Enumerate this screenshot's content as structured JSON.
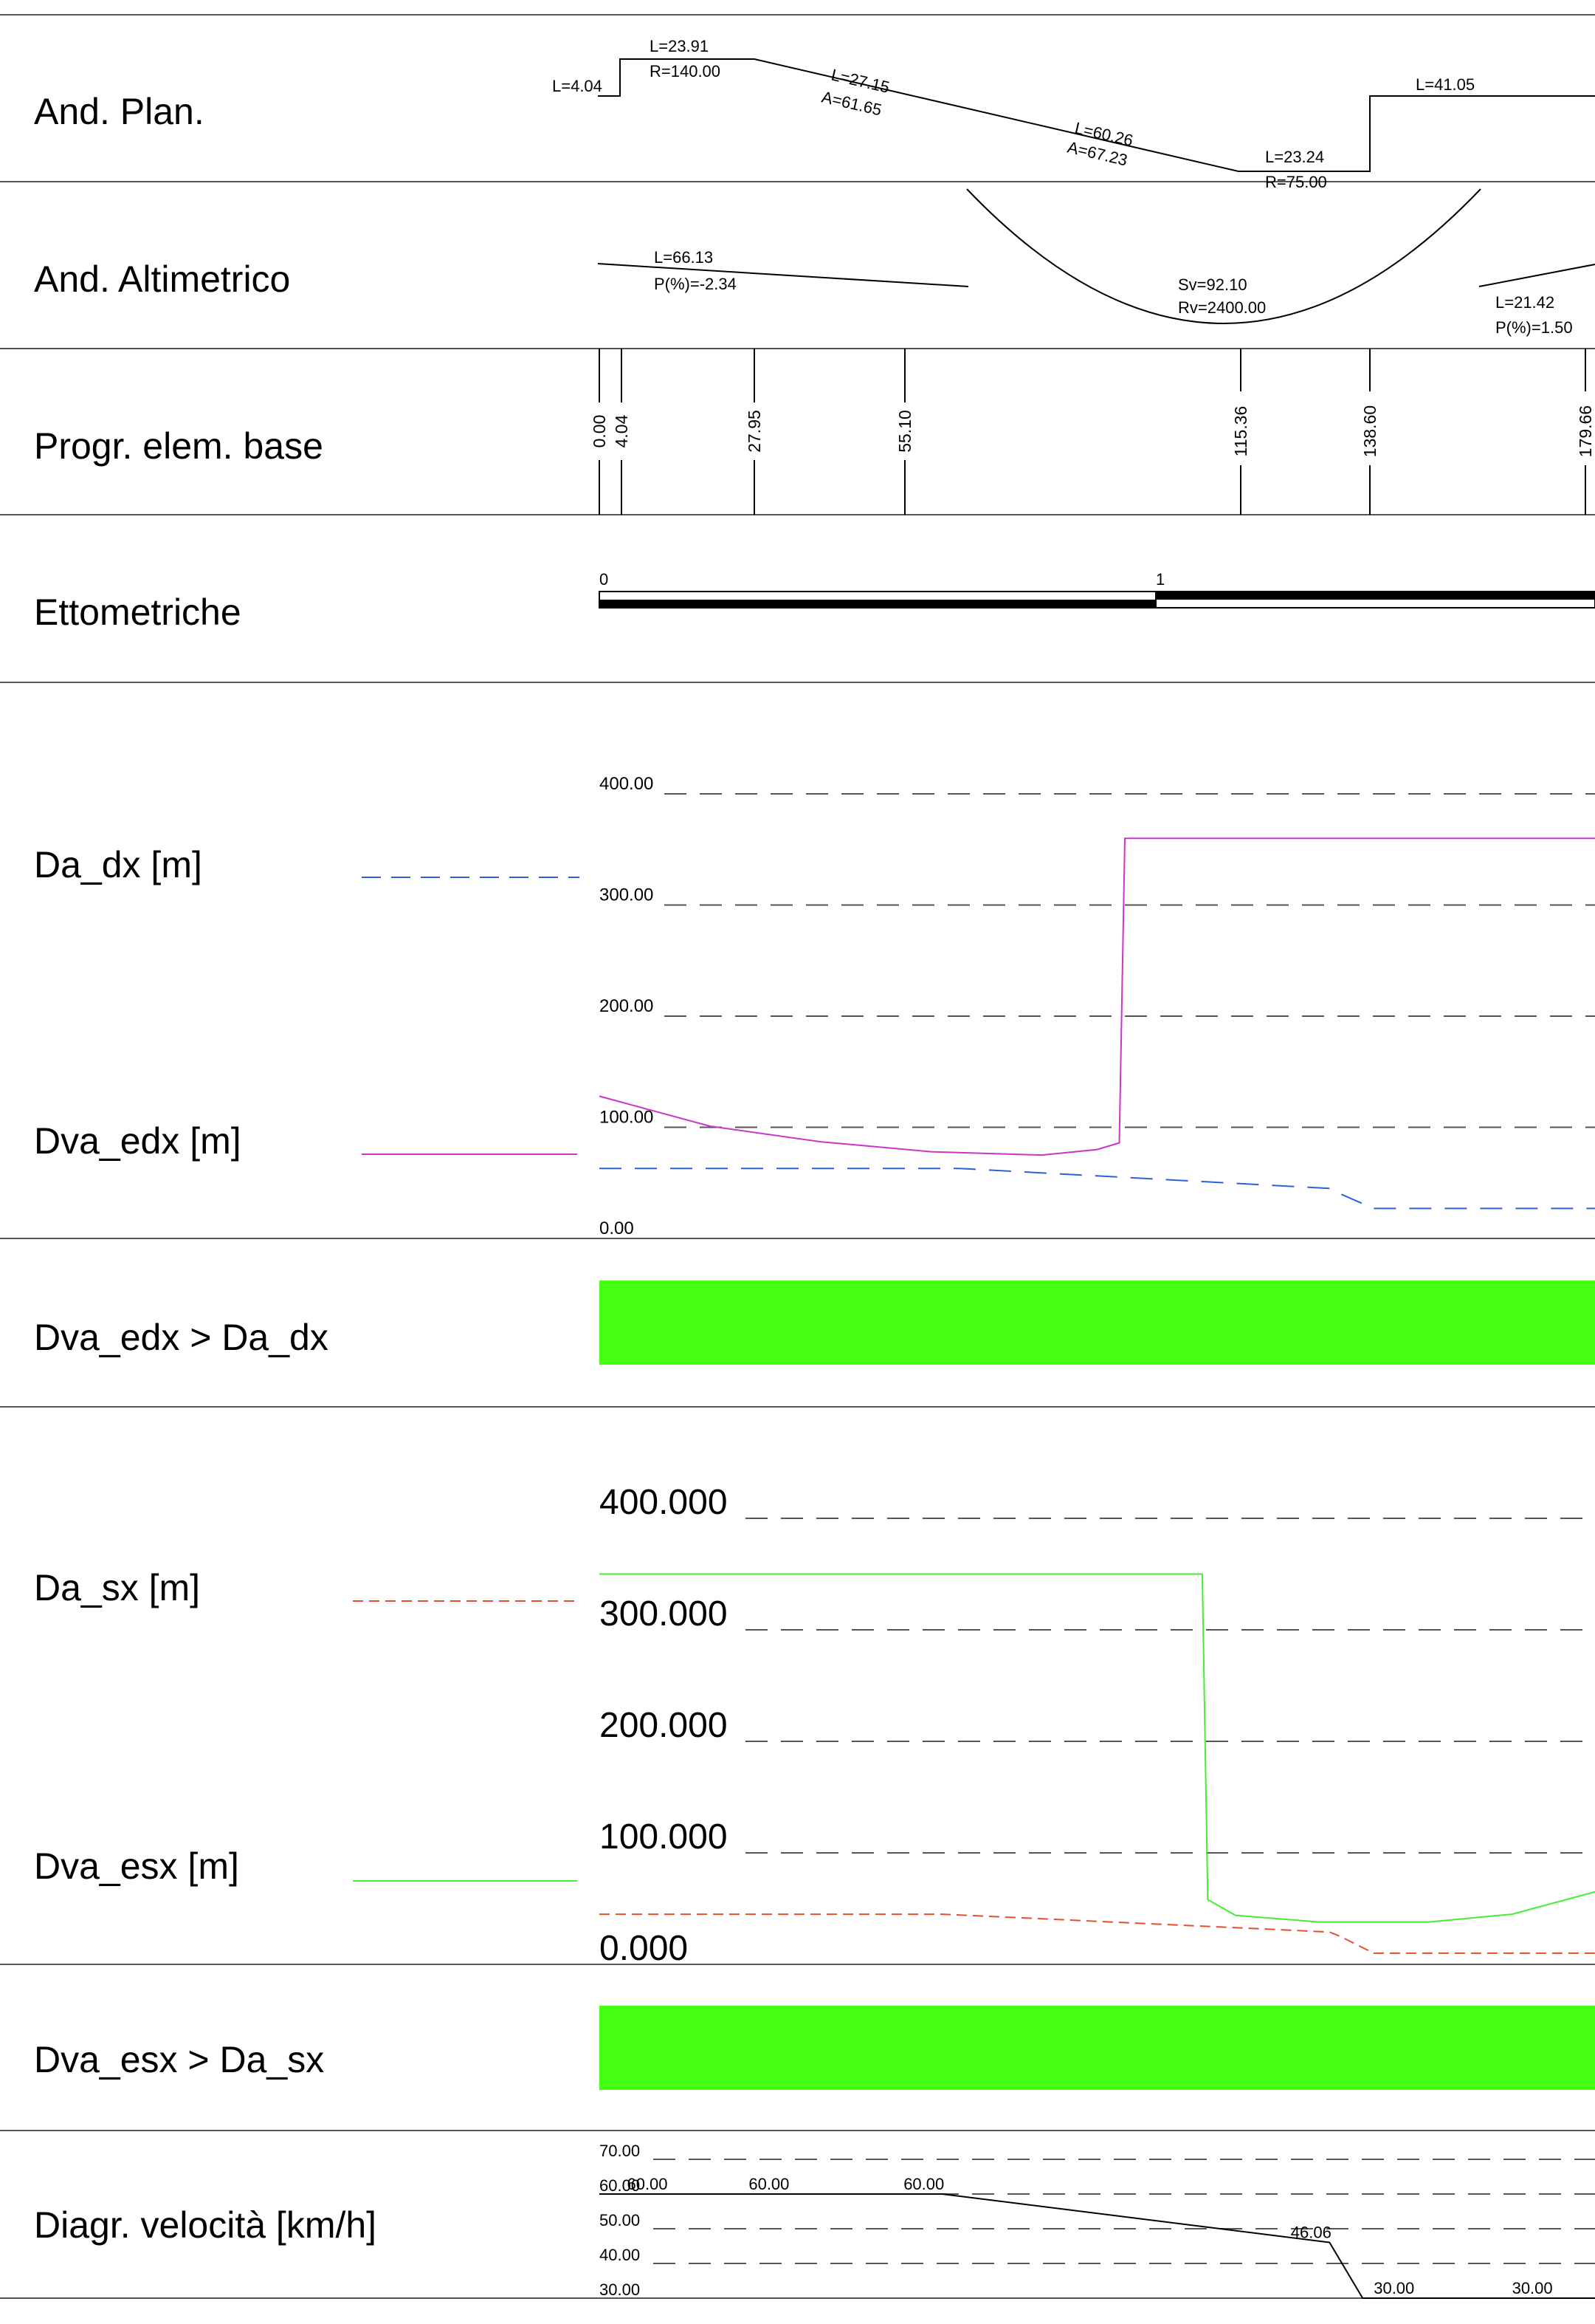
{
  "rows": {
    "and_plan": "And. Plan.",
    "and_alt": "And. Altimetrico",
    "progr": "Progr. elem. base",
    "ettometriche": "Ettometriche",
    "da_dx": "Da_dx [m]",
    "dva_edx": "Dva_edx [m]",
    "check_dx": "Dva_edx > Da_dx",
    "da_sx": "Da_sx [m]",
    "dva_esx": "Dva_esx [m]",
    "check_sx": "Dva_esx > Da_sx",
    "velocita": "Diagr. velocità [km/h]"
  },
  "plan_labels": {
    "l1": "L=4.04",
    "l2": "L=23.91",
    "r2": "R=140.00",
    "l3": "L=27.15",
    "a3": "A=61.65",
    "l4": "L=60.26",
    "a4": "A=67.23",
    "l5": "L=23.24",
    "r5": "R=75.00",
    "l6": "L=41.05"
  },
  "alt_labels": {
    "l1": "L=66.13",
    "p1": "P(%)=-2.34",
    "sv": "Sv=92.10",
    "rv": "Rv=2400.00",
    "l2": "L=21.42",
    "p2": "P(%)=1.50"
  },
  "progressives": [
    "0.00",
    "4.04",
    "27.95",
    "55.10",
    "115.36",
    "138.60",
    "179.66"
  ],
  "ettometriche": {
    "start": "0",
    "one": "1"
  },
  "colors": {
    "da_dx": "#2e5fd9",
    "dva_edx": "#cc33cc",
    "da_sx": "#e0502a",
    "dva_esx": "#44ee33",
    "ok_bar": "#44ff11"
  },
  "chart_data": [
    {
      "type": "line",
      "title": "",
      "xlabel": "",
      "ylabel": "",
      "ylim": [
        0,
        400
      ],
      "y_ticks": [
        "400.00",
        "300.00",
        "200.00",
        "100.00",
        "0.00"
      ],
      "grid": true,
      "series": [
        {
          "name": "Da_dx [m]",
          "x": [
            0,
            65,
            132,
            134,
            140,
            180
          ],
          "values": [
            63,
            63,
            45,
            40,
            27,
            27
          ]
        },
        {
          "name": "Dva_edx [m]",
          "x": [
            0,
            20,
            40,
            60,
            80,
            90,
            94,
            95,
            180
          ],
          "values": [
            128,
            101,
            87,
            78,
            75,
            80,
            86,
            360,
            360
          ]
        }
      ]
    },
    {
      "type": "line",
      "title": "",
      "xlabel": "",
      "ylabel": "",
      "ylim": [
        0,
        400
      ],
      "y_ticks": [
        "400.000",
        "300.000",
        "200.000",
        "100.000",
        "0.000"
      ],
      "grid": true,
      "series": [
        {
          "name": "Da_sx [m]",
          "x": [
            0,
            62,
            132,
            134,
            140,
            180
          ],
          "values": [
            45,
            45,
            29,
            25,
            10,
            10
          ]
        },
        {
          "name": "Dva_esx [m]",
          "x": [
            0,
            109,
            110,
            115,
            130,
            150,
            165,
            180
          ],
          "values": [
            350,
            350,
            58,
            44,
            38,
            38,
            45,
            65
          ]
        }
      ]
    },
    {
      "type": "line",
      "title": "",
      "xlabel": "",
      "ylabel": "",
      "ylim": [
        30,
        70
      ],
      "y_ticks": [
        "70.00",
        "60.00",
        "50.00",
        "40.00",
        "30.00"
      ],
      "grid": true,
      "series": [
        {
          "name": "",
          "x": [
            0,
            62,
            132,
            138,
            180
          ],
          "values": [
            60,
            60,
            46.06,
            30,
            30
          ]
        }
      ],
      "point_labels": [
        {
          "x": 5,
          "y": 60,
          "text": "60.00"
        },
        {
          "x": 27,
          "y": 60,
          "text": "60.00"
        },
        {
          "x": 55,
          "y": 60,
          "text": "60.00"
        },
        {
          "x": 125,
          "y": 46.06,
          "text": "46.06"
        },
        {
          "x": 140,
          "y": 30,
          "text": "30.00"
        },
        {
          "x": 165,
          "y": 30,
          "text": "30.00"
        }
      ]
    }
  ]
}
